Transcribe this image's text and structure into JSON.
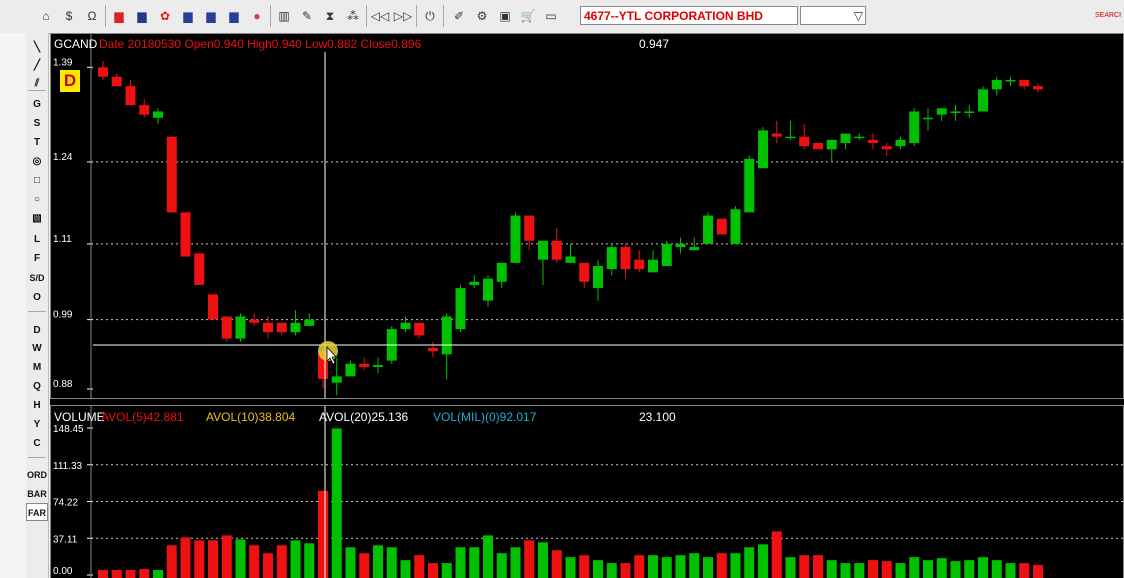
{
  "toolbar": {
    "stock": "4677--YTL CORPORATION BHD",
    "left_buttons": [
      {
        "name": "home-icon",
        "glyph": "⌂"
      },
      {
        "name": "dollar-icon",
        "glyph": "$"
      },
      {
        "name": "refresh-icon",
        "glyph": "Ω"
      },
      {
        "name": "singapore-flag-icon",
        "glyph": "▆",
        "color": "#e02020"
      },
      {
        "name": "malaysia-flag-icon",
        "glyph": "▆",
        "color": "#1f3a8a"
      },
      {
        "name": "hongkong-flag-icon",
        "glyph": "✿",
        "color": "#e02020"
      },
      {
        "name": "us-flag-icon",
        "glyph": "▆",
        "color": "#2a3f9a"
      },
      {
        "name": "us-flag-icon-2",
        "glyph": "▆",
        "color": "#2a3f9a"
      },
      {
        "name": "us-flag-icon-3",
        "glyph": "▆",
        "color": "#2a3f9a"
      },
      {
        "name": "world-icon",
        "glyph": "●",
        "color": "#d04040"
      },
      {
        "name": "bar-chart-icon",
        "glyph": "▥"
      },
      {
        "name": "note-icon",
        "glyph": "✎"
      },
      {
        "name": "hourglass-icon",
        "glyph": "⧗"
      },
      {
        "name": "group-icon",
        "glyph": "⁂"
      },
      {
        "name": "rewind-icon",
        "glyph": "◁◁"
      },
      {
        "name": "forward-icon",
        "glyph": "▷▷"
      },
      {
        "name": "power-icon",
        "glyph": "⏻"
      }
    ],
    "right_buttons": [
      {
        "name": "draw-icon",
        "glyph": "✐"
      },
      {
        "name": "settings-icon",
        "glyph": "⚙"
      },
      {
        "name": "window-icon",
        "glyph": "▣"
      },
      {
        "name": "cart-icon",
        "glyph": "🛒"
      },
      {
        "name": "folder-icon",
        "glyph": "▭"
      },
      {
        "name": "folder-open-icon",
        "glyph": "▭"
      },
      {
        "name": "monitor-icon",
        "glyph": "▭"
      }
    ],
    "dropdown_arrow": "▽",
    "flag_label": "SEARCH"
  },
  "left_tools": [
    {
      "name": "line-tool",
      "label": "╲"
    },
    {
      "name": "diagonal-tool",
      "label": "╱"
    },
    {
      "name": "parallel-tool",
      "label": "⫽"
    },
    {
      "name": "gann-tool",
      "label": "G"
    },
    {
      "name": "s-tool",
      "label": "S"
    },
    {
      "name": "t-tool",
      "label": "T"
    },
    {
      "name": "ellipse-tool",
      "label": "◎"
    },
    {
      "name": "rect-tool",
      "label": "□"
    },
    {
      "name": "circle-tool",
      "label": "○"
    },
    {
      "name": "fib-tool",
      "label": "▧"
    },
    {
      "name": "l-tool",
      "label": "L"
    },
    {
      "name": "f-tool",
      "label": "F"
    },
    {
      "name": "sd-tool",
      "label": "S/D"
    },
    {
      "name": "o-tool",
      "label": "O"
    },
    {
      "name": "daily-button",
      "label": "D"
    },
    {
      "name": "weekly-button",
      "label": "W"
    },
    {
      "name": "monthly-button",
      "label": "M"
    },
    {
      "name": "quarterly-button",
      "label": "Q"
    },
    {
      "name": "half-year-button",
      "label": "H"
    },
    {
      "name": "yearly-button",
      "label": "Y"
    },
    {
      "name": "custom-button",
      "label": "C"
    },
    {
      "name": "ord-button",
      "label": "ORD"
    },
    {
      "name": "bar-button",
      "label": "BAR"
    },
    {
      "name": "far-button",
      "label": "FAR"
    }
  ],
  "price": {
    "name": "GCAND",
    "info": "Date 20180530  Open0.940  High0.940  Low0.882  Close0.896",
    "cursor_value": "0.947",
    "period_badge": "D",
    "axis_labels": [
      "1.39",
      "1.24",
      "1.11",
      "0.99",
      "0.88"
    ]
  },
  "volume": {
    "name": "VOLUME",
    "avol5": "AVOL(5)42.881",
    "avol10": "AVOL(10)38.804",
    "avol20": "AVOL(20)25.136",
    "volmil": "VOL(MIL)(0)92.017",
    "cursor_value": "23.100",
    "axis_labels": [
      "148.45",
      "111.33",
      "74.22",
      "37.11",
      "0.00"
    ]
  },
  "colors": {
    "up": "#00c000",
    "down": "#ee1111",
    "grid": "#c8c8c8"
  },
  "chart_data": [
    {
      "type": "candlestick",
      "title": "GCAND",
      "ylim": [
        0.88,
        1.4
      ],
      "ticks": [
        1.39,
        1.24,
        1.11,
        0.99,
        0.88
      ],
      "candles": [
        [
          1.39,
          1.4,
          1.37,
          1.375
        ],
        [
          1.375,
          1.38,
          1.36,
          1.36
        ],
        [
          1.36,
          1.37,
          1.33,
          1.33
        ],
        [
          1.33,
          1.34,
          1.31,
          1.315
        ],
        [
          1.31,
          1.325,
          1.3,
          1.32
        ],
        [
          1.28,
          1.28,
          1.16,
          1.16
        ],
        [
          1.16,
          1.16,
          1.09,
          1.09
        ],
        [
          1.095,
          1.095,
          1.045,
          1.045
        ],
        [
          1.03,
          1.03,
          0.99,
          0.99
        ],
        [
          0.995,
          0.995,
          0.955,
          0.96
        ],
        [
          0.96,
          1.0,
          0.955,
          0.995
        ],
        [
          0.99,
          1.0,
          0.98,
          0.985
        ],
        [
          0.985,
          0.995,
          0.96,
          0.97
        ],
        [
          0.985,
          0.985,
          0.965,
          0.97
        ],
        [
          0.97,
          1.005,
          0.965,
          0.985
        ],
        [
          0.98,
          1.0,
          0.98,
          0.99
        ],
        [
          0.94,
          0.94,
          0.882,
          0.896
        ],
        [
          0.89,
          0.93,
          0.87,
          0.9
        ],
        [
          0.9,
          0.925,
          0.9,
          0.92
        ],
        [
          0.92,
          0.93,
          0.91,
          0.915
        ],
        [
          0.915,
          0.93,
          0.905,
          0.918
        ],
        [
          0.925,
          0.98,
          0.92,
          0.975
        ],
        [
          0.975,
          0.995,
          0.97,
          0.985
        ],
        [
          0.985,
          0.985,
          0.96,
          0.965
        ],
        [
          0.945,
          0.955,
          0.93,
          0.94
        ],
        [
          0.935,
          1.0,
          0.895,
          0.995
        ],
        [
          0.975,
          1.045,
          0.97,
          1.04
        ],
        [
          1.045,
          1.06,
          1.04,
          1.05
        ],
        [
          1.02,
          1.06,
          1.01,
          1.055
        ],
        [
          1.05,
          1.08,
          1.04,
          1.08
        ],
        [
          1.08,
          1.16,
          1.08,
          1.155
        ],
        [
          1.155,
          1.155,
          1.1,
          1.115
        ],
        [
          1.085,
          1.115,
          1.045,
          1.115
        ],
        [
          1.115,
          1.135,
          1.08,
          1.085
        ],
        [
          1.08,
          1.11,
          1.08,
          1.09
        ],
        [
          1.08,
          1.08,
          1.04,
          1.05
        ],
        [
          1.04,
          1.085,
          1.02,
          1.075
        ],
        [
          1.07,
          1.11,
          1.06,
          1.105
        ],
        [
          1.105,
          1.11,
          1.055,
          1.07
        ],
        [
          1.085,
          1.1,
          1.065,
          1.07
        ],
        [
          1.065,
          1.1,
          1.065,
          1.085
        ],
        [
          1.075,
          1.115,
          1.075,
          1.11
        ],
        [
          1.105,
          1.12,
          1.095,
          1.11
        ],
        [
          1.1,
          1.12,
          1.1,
          1.105
        ],
        [
          1.11,
          1.16,
          1.11,
          1.155
        ],
        [
          1.15,
          1.15,
          1.125,
          1.125
        ],
        [
          1.11,
          1.17,
          1.11,
          1.165
        ],
        [
          1.16,
          1.25,
          1.16,
          1.245
        ],
        [
          1.23,
          1.295,
          1.23,
          1.29
        ],
        [
          1.285,
          1.305,
          1.27,
          1.28
        ],
        [
          1.28,
          1.305,
          1.275,
          1.28
        ],
        [
          1.28,
          1.3,
          1.26,
          1.265
        ],
        [
          1.27,
          1.27,
          1.26,
          1.26
        ],
        [
          1.26,
          1.275,
          1.24,
          1.275
        ],
        [
          1.27,
          1.285,
          1.26,
          1.285
        ],
        [
          1.28,
          1.285,
          1.275,
          1.28
        ],
        [
          1.275,
          1.285,
          1.26,
          1.27
        ],
        [
          1.265,
          1.27,
          1.25,
          1.26
        ],
        [
          1.265,
          1.28,
          1.26,
          1.275
        ],
        [
          1.27,
          1.325,
          1.265,
          1.32
        ],
        [
          1.31,
          1.325,
          1.29,
          1.31
        ],
        [
          1.315,
          1.325,
          1.305,
          1.325
        ],
        [
          1.32,
          1.33,
          1.305,
          1.32
        ],
        [
          1.32,
          1.33,
          1.31,
          1.32
        ],
        [
          1.32,
          1.36,
          1.32,
          1.355
        ],
        [
          1.355,
          1.375,
          1.345,
          1.37
        ],
        [
          1.37,
          1.375,
          1.36,
          1.37
        ],
        [
          1.37,
          1.37,
          1.355,
          1.36
        ],
        [
          1.36,
          1.365,
          1.35,
          1.355
        ]
      ]
    },
    {
      "type": "bar",
      "title": "VOLUME",
      "ylim": [
        0,
        148.45
      ],
      "ticks": [
        148.45,
        111.33,
        74.22,
        37.11,
        0.0
      ],
      "values": [
        5,
        5,
        5,
        6,
        5,
        30,
        38,
        35,
        35,
        40,
        36,
        30,
        22,
        30,
        35,
        32,
        85,
        148,
        28,
        22,
        30,
        28,
        15,
        20,
        12,
        12,
        28,
        28,
        40,
        22,
        28,
        35,
        33,
        25,
        18,
        20,
        15,
        12,
        12,
        20,
        20,
        18,
        20,
        22,
        18,
        22,
        22,
        28,
        31,
        44,
        18,
        20,
        20,
        15,
        12,
        12,
        15,
        14,
        12,
        18,
        15,
        17,
        14,
        15,
        18,
        15,
        12,
        12,
        10
      ]
    }
  ]
}
